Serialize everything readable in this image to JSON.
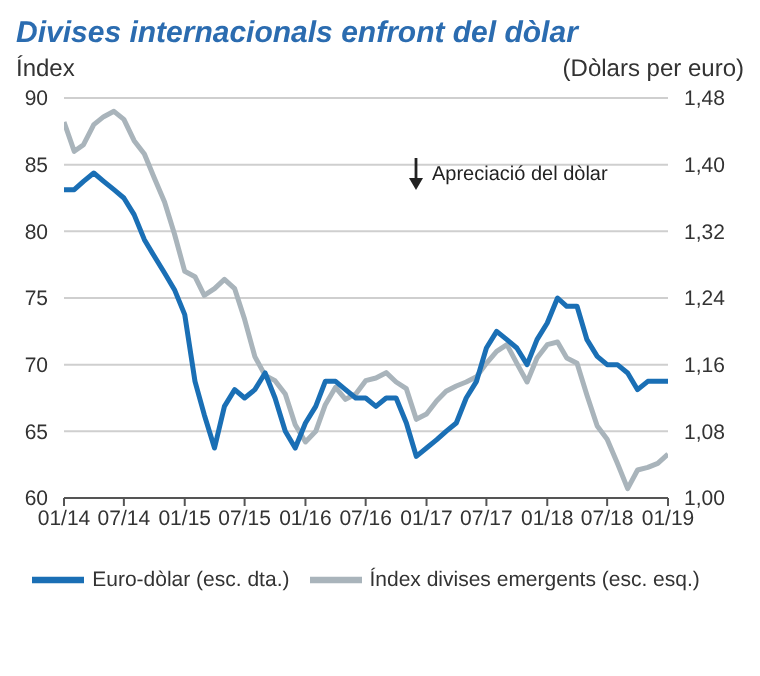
{
  "chart_data": {
    "type": "line",
    "title": "Divises internacionals enfront del dòlar",
    "ylabel": "Índex",
    "y2label": "(Dòlars per euro)",
    "x": [
      "2014-01",
      "2014-02",
      "2014-03",
      "2014-04",
      "2014-05",
      "2014-06",
      "2014-07",
      "2014-08",
      "2014-09",
      "2014-10",
      "2014-11",
      "2014-12",
      "2015-01",
      "2015-02",
      "2015-03",
      "2015-04",
      "2015-05",
      "2015-06",
      "2015-07",
      "2015-08",
      "2015-09",
      "2015-10",
      "2015-11",
      "2015-12",
      "2016-01",
      "2016-02",
      "2016-03",
      "2016-04",
      "2016-05",
      "2016-06",
      "2016-07",
      "2016-08",
      "2016-09",
      "2016-10",
      "2016-11",
      "2016-12",
      "2017-01",
      "2017-02",
      "2017-03",
      "2017-04",
      "2017-05",
      "2017-06",
      "2017-07",
      "2017-08",
      "2017-09",
      "2017-10",
      "2017-11",
      "2017-12",
      "2018-01",
      "2018-02",
      "2018-03",
      "2018-04",
      "2018-05",
      "2018-06",
      "2018-07",
      "2018-08",
      "2018-09",
      "2018-10",
      "2018-11",
      "2018-12",
      "2019-01"
    ],
    "series": [
      {
        "name": "Índex divises emergents (esc. esq.)",
        "color": "#a9b4bb",
        "values": [
          88.2,
          86,
          86.5,
          88,
          88.6,
          89,
          88.4,
          86.8,
          85.8,
          84,
          82.2,
          79.8,
          77,
          76.6,
          75.2,
          75.7,
          76.4,
          75.7,
          73.4,
          70.6,
          69.2,
          68.8,
          67.8,
          65.5,
          64.2,
          65,
          67,
          68.3,
          67.4,
          67.8,
          68.8,
          69,
          69.4,
          68.7,
          68.2,
          65.9,
          66.3,
          67.3,
          68,
          68.4,
          68.7,
          69.1,
          70.1,
          71,
          71.5,
          70.1,
          68.7,
          70.5,
          71.5,
          71.7,
          70.5,
          70.1,
          67.7,
          65.4,
          64.4,
          62.6,
          60.7,
          62.1,
          62.3,
          62.6,
          63.3
        ]
      },
      {
        "name": "Euro-dòlar (esc. dta.)",
        "color": "#1a6fb5",
        "axis": "y2",
        "values": [
          1.37,
          1.37,
          1.38,
          1.39,
          1.38,
          1.37,
          1.36,
          1.34,
          1.31,
          1.29,
          1.27,
          1.25,
          1.22,
          1.14,
          1.1,
          1.06,
          1.11,
          1.13,
          1.12,
          1.13,
          1.15,
          1.12,
          1.08,
          1.06,
          1.09,
          1.11,
          1.14,
          1.14,
          1.13,
          1.12,
          1.12,
          1.11,
          1.12,
          1.12,
          1.09,
          1.05,
          1.06,
          1.07,
          1.08,
          1.09,
          1.12,
          1.14,
          1.18,
          1.2,
          1.19,
          1.18,
          1.16,
          1.19,
          1.21,
          1.24,
          1.23,
          1.23,
          1.19,
          1.17,
          1.16,
          1.16,
          1.15,
          1.13,
          1.14,
          1.14,
          1.14
        ]
      }
    ],
    "ylim": [
      60,
      90
    ],
    "yticks": [
      60,
      65,
      70,
      75,
      80,
      85,
      90
    ],
    "y2lim": [
      1.0,
      1.48
    ],
    "y2ticks": [
      {
        "value": 1.0,
        "label": "1,00"
      },
      {
        "value": 1.08,
        "label": "1,08"
      },
      {
        "value": 1.16,
        "label": "1,16"
      },
      {
        "value": 1.24,
        "label": "1,24"
      },
      {
        "value": 1.32,
        "label": "1,32"
      },
      {
        "value": 1.4,
        "label": "1,40"
      },
      {
        "value": 1.48,
        "label": "1,48"
      }
    ],
    "xlim": [
      "2014-01",
      "2019-01"
    ],
    "xticks": [
      {
        "value": "2014-01",
        "label": "01/14"
      },
      {
        "value": "2014-07",
        "label": "07/14"
      },
      {
        "value": "2015-01",
        "label": "01/15"
      },
      {
        "value": "2015-07",
        "label": "07/15"
      },
      {
        "value": "2016-01",
        "label": "01/16"
      },
      {
        "value": "2016-07",
        "label": "07/16"
      },
      {
        "value": "2017-01",
        "label": "01/17"
      },
      {
        "value": "2017-07",
        "label": "07/17"
      },
      {
        "value": "2018-01",
        "label": "01/18"
      },
      {
        "value": "2018-07",
        "label": "07/18"
      },
      {
        "value": "2019-01",
        "label": "01/19"
      }
    ],
    "annotations": [
      "Apreciació del dòlar"
    ],
    "grid": "y",
    "legend": "bottom",
    "line_style": "solid",
    "marker": "none"
  }
}
